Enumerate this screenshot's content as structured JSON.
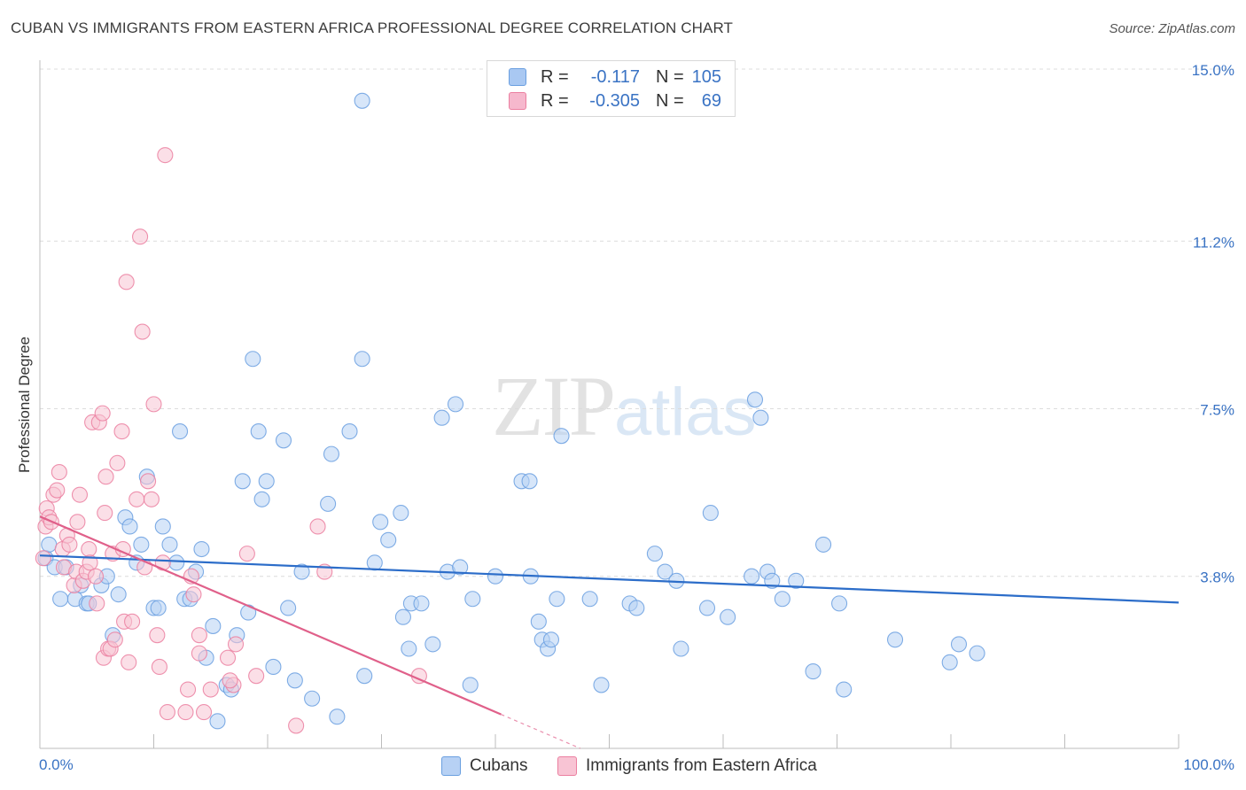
{
  "title": "CUBAN VS IMMIGRANTS FROM EASTERN AFRICA PROFESSIONAL DEGREE CORRELATION CHART",
  "source": "Source: ZipAtlas.com",
  "watermark": {
    "zip": "ZIP",
    "atlas": "atlas"
  },
  "legend": {
    "r_label": "R =",
    "n_label": "N =",
    "rows": [
      {
        "r": "-0.117",
        "n": "105",
        "color": "#a9c8f2"
      },
      {
        "r": "-0.305",
        "n": "69",
        "color": "#f6b8cd"
      }
    ]
  },
  "chart_data": {
    "type": "scatter",
    "title": "CUBAN VS IMMIGRANTS FROM EASTERN AFRICA PROFESSIONAL DEGREE CORRELATION CHART",
    "xlabel": "",
    "ylabel": "Professional Degree",
    "xlim": [
      0,
      100
    ],
    "ylim": [
      0,
      15.0
    ],
    "x_tick_labels": [
      "0.0%",
      "100.0%"
    ],
    "y_ticks": [
      3.8,
      7.5,
      11.2,
      15.0
    ],
    "y_tick_labels": [
      "3.8%",
      "7.5%",
      "11.2%",
      "15.0%"
    ],
    "grid": true,
    "legend_position": "top-center",
    "series": [
      {
        "name": "Cubans",
        "color": "#6a9fe0",
        "fill": "#b7d1f4",
        "line_color": "#2c6dc9",
        "trend": {
          "x": [
            0,
            100
          ],
          "y": [
            4.26,
            3.22
          ]
        },
        "points": [
          [
            0.5,
            4.2
          ],
          [
            0.8,
            4.5
          ],
          [
            1.3,
            4.0
          ],
          [
            1.8,
            3.3
          ],
          [
            2.3,
            4.0
          ],
          [
            3.1,
            3.3
          ],
          [
            3.6,
            3.6
          ],
          [
            4.1,
            3.2
          ],
          [
            4.3,
            3.2
          ],
          [
            5.4,
            3.6
          ],
          [
            5.9,
            3.8
          ],
          [
            6.4,
            2.5
          ],
          [
            6.9,
            3.4
          ],
          [
            7.5,
            5.1
          ],
          [
            7.9,
            4.9
          ],
          [
            8.5,
            4.1
          ],
          [
            8.9,
            4.5
          ],
          [
            9.4,
            6.0
          ],
          [
            10.0,
            3.1
          ],
          [
            10.4,
            3.1
          ],
          [
            10.8,
            4.9
          ],
          [
            11.4,
            4.5
          ],
          [
            12.0,
            4.1
          ],
          [
            12.3,
            7.0
          ],
          [
            12.7,
            3.3
          ],
          [
            13.2,
            3.3
          ],
          [
            13.7,
            3.9
          ],
          [
            14.2,
            4.4
          ],
          [
            14.6,
            2.0
          ],
          [
            15.2,
            2.7
          ],
          [
            15.6,
            0.6
          ],
          [
            16.4,
            1.4
          ],
          [
            16.8,
            1.3
          ],
          [
            17.3,
            2.5
          ],
          [
            17.8,
            5.9
          ],
          [
            18.3,
            3.0
          ],
          [
            18.7,
            8.6
          ],
          [
            19.2,
            7.0
          ],
          [
            19.5,
            5.5
          ],
          [
            19.9,
            5.9
          ],
          [
            20.5,
            1.8
          ],
          [
            21.4,
            6.8
          ],
          [
            21.8,
            3.1
          ],
          [
            22.4,
            1.5
          ],
          [
            23.0,
            3.9
          ],
          [
            23.9,
            1.1
          ],
          [
            25.3,
            5.4
          ],
          [
            25.6,
            6.5
          ],
          [
            26.1,
            0.7
          ],
          [
            27.2,
            7.0
          ],
          [
            28.3,
            8.6
          ],
          [
            28.5,
            1.6
          ],
          [
            29.4,
            4.1
          ],
          [
            29.9,
            5.0
          ],
          [
            30.6,
            4.6
          ],
          [
            31.7,
            5.2
          ],
          [
            31.9,
            2.9
          ],
          [
            32.4,
            2.2
          ],
          [
            32.6,
            3.2
          ],
          [
            33.5,
            3.2
          ],
          [
            34.5,
            2.3
          ],
          [
            35.3,
            7.3
          ],
          [
            35.8,
            3.9
          ],
          [
            36.5,
            7.6
          ],
          [
            36.9,
            4.0
          ],
          [
            37.8,
            1.4
          ],
          [
            38.0,
            3.3
          ],
          [
            40.0,
            3.8
          ],
          [
            42.3,
            5.9
          ],
          [
            43.0,
            5.9
          ],
          [
            43.1,
            3.8
          ],
          [
            43.8,
            2.8
          ],
          [
            44.1,
            2.4
          ],
          [
            44.6,
            2.2
          ],
          [
            44.9,
            2.4
          ],
          [
            45.4,
            3.3
          ],
          [
            45.8,
            6.9
          ],
          [
            48.3,
            3.3
          ],
          [
            49.3,
            1.4
          ],
          [
            51.8,
            3.2
          ],
          [
            52.4,
            3.1
          ],
          [
            54.0,
            4.3
          ],
          [
            54.9,
            3.9
          ],
          [
            55.9,
            3.7
          ],
          [
            56.3,
            2.2
          ],
          [
            58.6,
            3.1
          ],
          [
            58.9,
            5.2
          ],
          [
            60.4,
            2.9
          ],
          [
            62.5,
            3.8
          ],
          [
            62.8,
            7.7
          ],
          [
            63.3,
            7.3
          ],
          [
            63.9,
            3.9
          ],
          [
            64.3,
            3.7
          ],
          [
            65.2,
            3.3
          ],
          [
            66.4,
            3.7
          ],
          [
            67.9,
            1.7
          ],
          [
            68.8,
            4.5
          ],
          [
            70.2,
            3.2
          ],
          [
            70.6,
            1.3
          ],
          [
            75.1,
            2.4
          ],
          [
            79.9,
            1.9
          ],
          [
            80.7,
            2.3
          ],
          [
            82.3,
            2.1
          ],
          [
            28.3,
            14.3
          ]
        ]
      },
      {
        "name": "Immigrants from Eastern Africa",
        "color": "#eb7fa0",
        "fill": "#f8c4d4",
        "line_color": "#e0608a",
        "trend": {
          "x": [
            0,
            40.5
          ],
          "y": [
            5.12,
            0.75
          ]
        },
        "points": [
          [
            0.3,
            4.2
          ],
          [
            0.5,
            4.9
          ],
          [
            0.6,
            5.3
          ],
          [
            0.8,
            5.1
          ],
          [
            1.0,
            5.0
          ],
          [
            1.2,
            5.6
          ],
          [
            1.5,
            5.7
          ],
          [
            1.7,
            6.1
          ],
          [
            2.0,
            4.4
          ],
          [
            2.1,
            4.0
          ],
          [
            2.4,
            4.7
          ],
          [
            2.6,
            4.5
          ],
          [
            3.0,
            3.6
          ],
          [
            3.2,
            3.9
          ],
          [
            3.3,
            5.0
          ],
          [
            3.5,
            5.6
          ],
          [
            3.8,
            3.7
          ],
          [
            4.1,
            3.9
          ],
          [
            4.3,
            4.4
          ],
          [
            4.4,
            4.1
          ],
          [
            4.6,
            7.2
          ],
          [
            4.9,
            3.8
          ],
          [
            5.0,
            3.2
          ],
          [
            5.2,
            7.2
          ],
          [
            5.5,
            7.4
          ],
          [
            5.6,
            2.0
          ],
          [
            5.7,
            5.2
          ],
          [
            5.8,
            6.0
          ],
          [
            6.0,
            2.2
          ],
          [
            6.2,
            2.2
          ],
          [
            6.4,
            4.3
          ],
          [
            6.6,
            2.4
          ],
          [
            6.8,
            6.3
          ],
          [
            7.2,
            7.0
          ],
          [
            7.3,
            4.4
          ],
          [
            7.4,
            2.8
          ],
          [
            7.6,
            10.3
          ],
          [
            7.8,
            1.9
          ],
          [
            8.1,
            2.8
          ],
          [
            8.5,
            5.5
          ],
          [
            8.8,
            11.3
          ],
          [
            9.0,
            9.2
          ],
          [
            9.2,
            4.0
          ],
          [
            9.5,
            5.9
          ],
          [
            9.8,
            5.5
          ],
          [
            10.0,
            7.6
          ],
          [
            10.3,
            2.5
          ],
          [
            10.5,
            1.8
          ],
          [
            10.8,
            4.1
          ],
          [
            11.0,
            13.1
          ],
          [
            11.2,
            0.8
          ],
          [
            12.8,
            0.8
          ],
          [
            13.0,
            1.3
          ],
          [
            13.3,
            3.8
          ],
          [
            13.5,
            3.4
          ],
          [
            14.0,
            2.1
          ],
          [
            14.4,
            0.8
          ],
          [
            15.0,
            1.3
          ],
          [
            16.5,
            2.0
          ],
          [
            17.0,
            1.4
          ],
          [
            16.7,
            1.5
          ],
          [
            17.2,
            2.3
          ],
          [
            18.2,
            4.3
          ],
          [
            19.0,
            1.6
          ],
          [
            22.5,
            0.5
          ],
          [
            24.4,
            4.9
          ],
          [
            25.0,
            3.9
          ],
          [
            33.3,
            1.6
          ],
          [
            14.0,
            2.5
          ]
        ]
      }
    ]
  },
  "bottom_legend": [
    "Cubans",
    "Immigrants from Eastern Africa"
  ]
}
